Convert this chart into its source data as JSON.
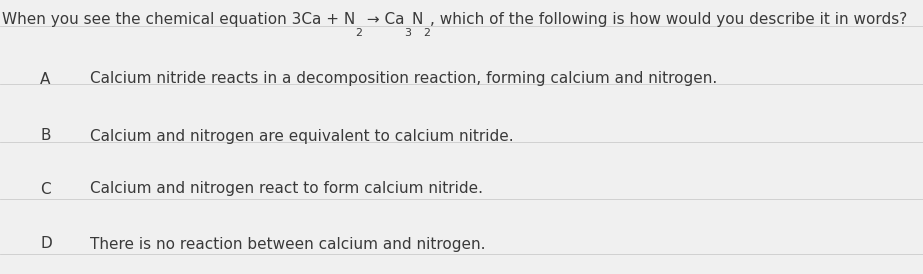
{
  "background_color": "#f0f0f0",
  "text_color": "#3a3a3a",
  "options": [
    {
      "label": "A",
      "text": "Calcium nitride reacts in a decomposition reaction, forming calcium and nitrogen."
    },
    {
      "label": "B",
      "text": "Calcium and nitrogen are equivalent to calcium nitride."
    },
    {
      "label": "C",
      "text": "Calcium and nitrogen react to form calcium nitride."
    },
    {
      "label": "D",
      "text": "There is no reaction between calcium and nitrogen."
    }
  ],
  "question_fontsize": 11.0,
  "option_fontsize": 11.0,
  "figsize": [
    9.23,
    2.74
  ],
  "dpi": 100,
  "separator_color": "#cccccc",
  "separator_lw": 0.6
}
